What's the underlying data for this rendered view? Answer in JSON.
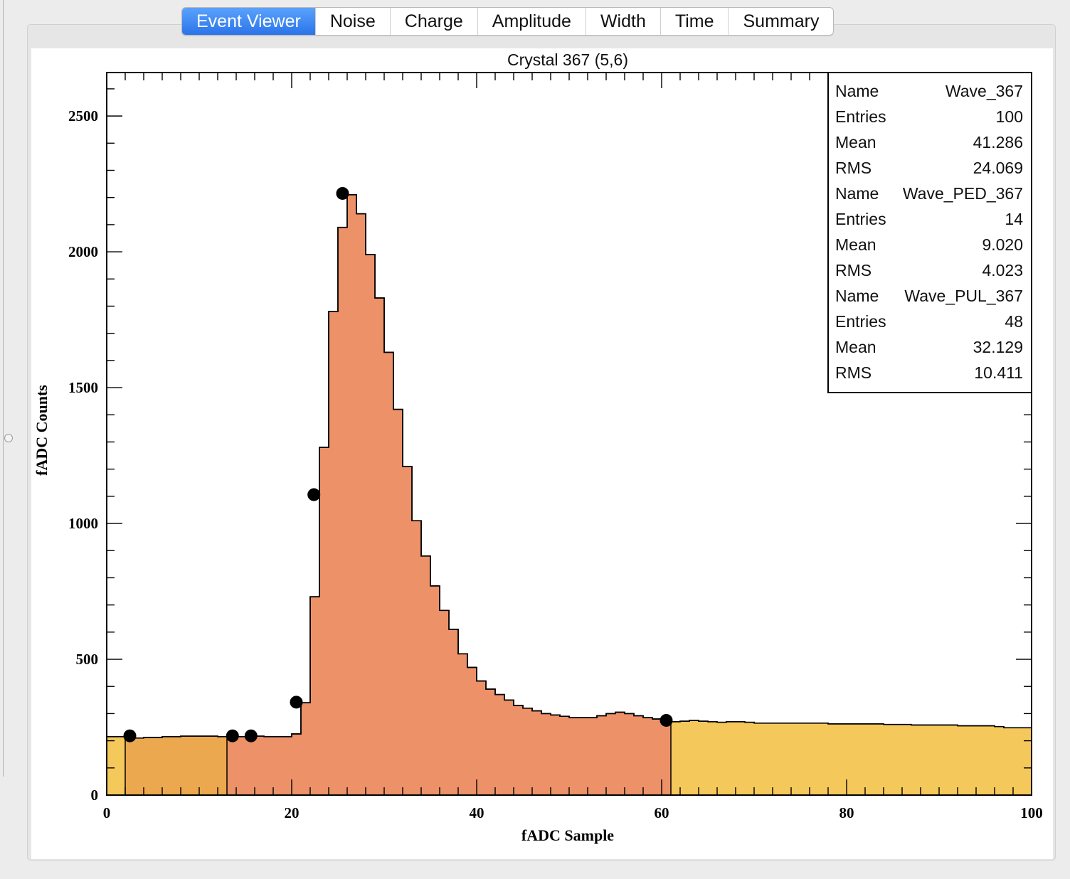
{
  "tabs": [
    {
      "label": "Event Viewer",
      "active": true
    },
    {
      "label": "Noise",
      "active": false
    },
    {
      "label": "Charge",
      "active": false
    },
    {
      "label": "Amplitude",
      "active": false
    },
    {
      "label": "Width",
      "active": false
    },
    {
      "label": "Time",
      "active": false
    },
    {
      "label": "Summary",
      "active": false
    }
  ],
  "chart_data": {
    "type": "bar",
    "title": "Crystal 367 (5,6)",
    "xlabel": "fADC Sample",
    "ylabel": "fADC Counts",
    "xlim": [
      0,
      100
    ],
    "ylim": [
      0,
      2660
    ],
    "xticks": [
      0,
      20,
      40,
      60,
      80,
      100
    ],
    "yticks": [
      0,
      500,
      1000,
      1500,
      2000,
      2500
    ],
    "grid": false,
    "histogram": {
      "name": "Wave_367",
      "bin_width": 1,
      "x_start": 0,
      "values": [
        215,
        215,
        210,
        210,
        212,
        212,
        215,
        215,
        217,
        217,
        217,
        217,
        215,
        215,
        215,
        217,
        217,
        215,
        215,
        215,
        225,
        340,
        730,
        1280,
        1780,
        2090,
        2210,
        2140,
        1990,
        1830,
        1630,
        1420,
        1210,
        1010,
        880,
        770,
        680,
        610,
        520,
        470,
        420,
        390,
        370,
        350,
        330,
        320,
        310,
        300,
        295,
        290,
        285,
        285,
        285,
        292,
        300,
        305,
        300,
        292,
        285,
        280,
        275,
        270,
        272,
        275,
        272,
        270,
        268,
        270,
        270,
        268,
        265,
        265,
        265,
        265,
        265,
        265,
        265,
        265,
        262,
        262,
        262,
        262,
        262,
        262,
        260,
        260,
        260,
        258,
        258,
        258,
        258,
        258,
        255,
        255,
        255,
        255,
        252,
        248,
        248,
        248
      ]
    },
    "regions": [
      {
        "name": "Wave_367",
        "x_range": [
          0,
          100
        ],
        "color": "#f5c85c"
      },
      {
        "name": "Wave_PED_367",
        "x_range": [
          2,
          16
        ],
        "color": "#eca84e"
      },
      {
        "name": "Wave_PUL_367",
        "x_range": [
          13,
          61
        ],
        "color": "#ec9168"
      }
    ],
    "marker_points": [
      {
        "x": 2.5,
        "y": 218
      },
      {
        "x": 13.6,
        "y": 218
      },
      {
        "x": 15.6,
        "y": 218
      },
      {
        "x": 20.5,
        "y": 342
      },
      {
        "x": 22.4,
        "y": 1106
      },
      {
        "x": 25.5,
        "y": 2215
      },
      {
        "x": 60.5,
        "y": 275
      }
    ],
    "stats": [
      {
        "label": "Name",
        "value": "Wave_367"
      },
      {
        "label": "Entries",
        "value": "100"
      },
      {
        "label": "Mean",
        "value": "41.286"
      },
      {
        "label": "RMS",
        "value": "24.069"
      },
      {
        "label": "Name",
        "value": "Wave_PED_367"
      },
      {
        "label": "Entries",
        "value": "14"
      },
      {
        "label": "Mean",
        "value": "9.020"
      },
      {
        "label": "RMS",
        "value": "4.023"
      },
      {
        "label": "Name",
        "value": "Wave_PUL_367"
      },
      {
        "label": "Entries",
        "value": "48"
      },
      {
        "label": "Mean",
        "value": "32.129"
      },
      {
        "label": "RMS",
        "value": "10.411"
      }
    ],
    "legend_position": "top-right"
  }
}
